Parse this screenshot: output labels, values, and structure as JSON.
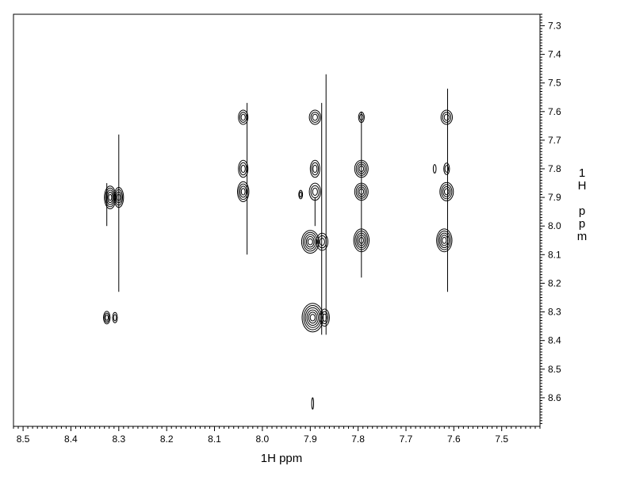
{
  "chart_data": {
    "type": "contour",
    "xlabel": "1H ppm",
    "ylabel": [
      "1",
      "H",
      "",
      "p",
      "p",
      "m"
    ],
    "xlim": [
      8.52,
      7.42
    ],
    "ylim": [
      7.26,
      8.7
    ],
    "x_reversed": true,
    "y_reversed": true,
    "x_ticks": [
      "8.5",
      "8.4",
      "8.3",
      "8.2",
      "8.1",
      "8.0",
      "7.9",
      "7.8",
      "7.7",
      "7.6",
      "7.5"
    ],
    "x_tick_values": [
      8.5,
      8.4,
      8.3,
      8.2,
      8.1,
      8.0,
      7.9,
      7.8,
      7.7,
      7.6,
      7.5
    ],
    "y_ticks": [
      "7.3",
      "7.4",
      "7.5",
      "7.6",
      "7.7",
      "7.8",
      "7.9",
      "8.0",
      "8.1",
      "8.2",
      "8.3",
      "8.4",
      "8.5",
      "8.6"
    ],
    "y_tick_values": [
      7.3,
      7.4,
      7.5,
      7.6,
      7.7,
      7.8,
      7.9,
      8.0,
      8.1,
      8.2,
      8.3,
      8.4,
      8.5,
      8.6
    ],
    "grid": false,
    "peaks": [
      {
        "x": 8.318,
        "y": 7.9,
        "rx": 0.012,
        "ry": 0.04,
        "levels": 5
      },
      {
        "x": 8.3,
        "y": 7.9,
        "rx": 0.01,
        "ry": 0.035,
        "levels": 4
      },
      {
        "x": 8.325,
        "y": 8.32,
        "rx": 0.007,
        "ry": 0.022,
        "levels": 3
      },
      {
        "x": 8.308,
        "y": 8.32,
        "rx": 0.005,
        "ry": 0.018,
        "levels": 2
      },
      {
        "x": 8.04,
        "y": 7.62,
        "rx": 0.01,
        "ry": 0.025,
        "levels": 3
      },
      {
        "x": 8.04,
        "y": 7.8,
        "rx": 0.01,
        "ry": 0.03,
        "levels": 3
      },
      {
        "x": 8.04,
        "y": 7.88,
        "rx": 0.012,
        "ry": 0.035,
        "levels": 4
      },
      {
        "x": 7.89,
        "y": 7.62,
        "rx": 0.012,
        "ry": 0.025,
        "levels": 3
      },
      {
        "x": 7.89,
        "y": 7.8,
        "rx": 0.01,
        "ry": 0.03,
        "levels": 3
      },
      {
        "x": 7.89,
        "y": 7.88,
        "rx": 0.012,
        "ry": 0.03,
        "levels": 3
      },
      {
        "x": 7.9,
        "y": 8.055,
        "rx": 0.018,
        "ry": 0.04,
        "levels": 5
      },
      {
        "x": 7.875,
        "y": 8.055,
        "rx": 0.012,
        "ry": 0.03,
        "levels": 3
      },
      {
        "x": 7.895,
        "y": 8.32,
        "rx": 0.022,
        "ry": 0.05,
        "levels": 6
      },
      {
        "x": 7.87,
        "y": 8.32,
        "rx": 0.01,
        "ry": 0.03,
        "levels": 3
      },
      {
        "x": 7.92,
        "y": 7.89,
        "rx": 0.004,
        "ry": 0.015,
        "levels": 2
      },
      {
        "x": 7.793,
        "y": 7.8,
        "rx": 0.014,
        "ry": 0.03,
        "levels": 4
      },
      {
        "x": 7.793,
        "y": 7.88,
        "rx": 0.014,
        "ry": 0.03,
        "levels": 4
      },
      {
        "x": 7.793,
        "y": 8.05,
        "rx": 0.016,
        "ry": 0.04,
        "levels": 5
      },
      {
        "x": 7.793,
        "y": 7.62,
        "rx": 0.006,
        "ry": 0.018,
        "levels": 2
      },
      {
        "x": 7.615,
        "y": 7.62,
        "rx": 0.012,
        "ry": 0.025,
        "levels": 3
      },
      {
        "x": 7.615,
        "y": 7.8,
        "rx": 0.006,
        "ry": 0.02,
        "levels": 2
      },
      {
        "x": 7.64,
        "y": 7.8,
        "rx": 0.003,
        "ry": 0.015,
        "levels": 1
      },
      {
        "x": 7.615,
        "y": 7.88,
        "rx": 0.014,
        "ry": 0.032,
        "levels": 4
      },
      {
        "x": 7.62,
        "y": 8.05,
        "rx": 0.016,
        "ry": 0.04,
        "levels": 5
      },
      {
        "x": 7.895,
        "y": 8.62,
        "rx": 0.002,
        "ry": 0.02,
        "levels": 1
      }
    ],
    "ridges": [
      {
        "x": 8.3,
        "y1": 7.68,
        "y2": 8.23
      },
      {
        "x": 8.325,
        "y1": 7.85,
        "y2": 8.0
      },
      {
        "x": 8.032,
        "y1": 7.57,
        "y2": 8.1
      },
      {
        "x": 7.867,
        "y1": 7.47,
        "y2": 8.38
      },
      {
        "x": 7.876,
        "y1": 7.57,
        "y2": 8.38
      },
      {
        "x": 7.793,
        "y1": 7.6,
        "y2": 8.18
      },
      {
        "x": 7.613,
        "y1": 7.52,
        "y2": 8.23
      },
      {
        "x": 7.89,
        "y1": 7.9,
        "y2": 8.0
      }
    ]
  }
}
